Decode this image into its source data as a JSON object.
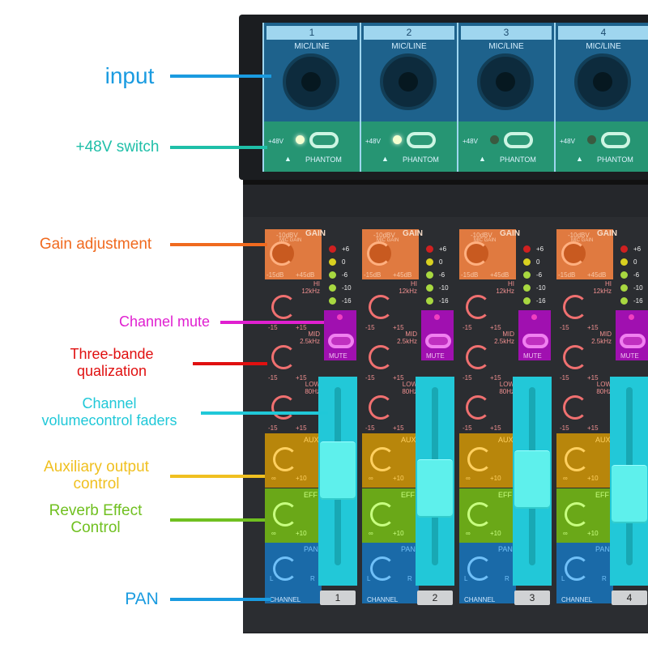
{
  "annotations": [
    {
      "text": "input",
      "color": "#1a9be0"
    },
    {
      "text": "+48V switch",
      "color": "#1fbfa8"
    },
    {
      "text": "Gain adjustment",
      "color": "#f06a1f"
    },
    {
      "text": "Channel mute",
      "color": "#e020d0"
    },
    {
      "text": "Three-bande\nqualization",
      "color": "#e01010"
    },
    {
      "text": "Channel\nvolumecontrol faders",
      "color": "#20c8d8"
    },
    {
      "text": "Auxiliary output\ncontrol",
      "color": "#f0c020"
    },
    {
      "text": "Reverb Effect\nControl",
      "color": "#70c020"
    },
    {
      "text": "PAN",
      "color": "#1a9be0"
    }
  ],
  "panel": {
    "input_label": "MIC/LINE",
    "phantom_voltage": "+48V",
    "phantom_label": "PHANTOM",
    "gain_label": "GAIN",
    "gain_scale": [
      "-10dBV",
      "MIC GAIN",
      "0",
      "60",
      "-15dB",
      "+45dB"
    ],
    "hi_label": "HI\n12kHz",
    "mid_label": "MID\n2.5kHz",
    "low_label": "LOW\n80Hz",
    "eq_range": [
      "0",
      "-15",
      "+15"
    ],
    "aux_label": "AUX",
    "eff_label": "EFF",
    "send_range": [
      "∞",
      "+10"
    ],
    "pan_label": "PAN",
    "pan_range": [
      "L",
      "R"
    ],
    "mute_label": "MUTE",
    "channel_label": "CHANNEL",
    "meter_levels": [
      "+6",
      "0",
      "-6",
      "-10",
      "-16"
    ],
    "meter_colors": [
      "#d02020",
      "#d8d020",
      "#a8d840",
      "#a8d840",
      "#a8d840"
    ]
  },
  "channels": [
    {
      "number": "1",
      "phantom_on": true,
      "fader_level": 0.55
    },
    {
      "number": "2",
      "phantom_on": true,
      "fader_level": 0.45
    },
    {
      "number": "3",
      "phantom_on": false,
      "fader_level": 0.5
    },
    {
      "number": "4",
      "phantom_on": false,
      "fader_level": 0.42
    }
  ]
}
